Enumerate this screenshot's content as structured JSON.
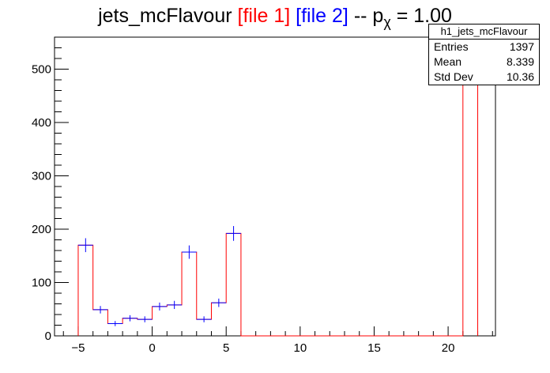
{
  "chart_data": {
    "type": "bar",
    "title_parts": [
      {
        "text": "jets_mcFlavour ",
        "color": "#000000"
      },
      {
        "text": "[file 1]",
        "color": "#ff0000"
      },
      {
        "text": " [file 2]",
        "color": "#0000ff"
      },
      {
        "text": " -- p",
        "color": "#000000"
      }
    ],
    "title_subscript": "χ",
    "title_suffix": " = 1.00",
    "bin_edges": [
      -5,
      -4,
      -3,
      -2,
      -1,
      0,
      1,
      2,
      3,
      4,
      5,
      6,
      7,
      8,
      9,
      10,
      11,
      12,
      13,
      14,
      15,
      16,
      17,
      18,
      19,
      20,
      21,
      22
    ],
    "series": [
      {
        "color": "#ff0000",
        "style": "histogram",
        "values": [
          170,
          49,
          23,
          33,
          31,
          55,
          58,
          157,
          31,
          62,
          192,
          0,
          0,
          0,
          0,
          0,
          0,
          0,
          0,
          0,
          0,
          0,
          0,
          0,
          0,
          0,
          533
        ]
      },
      {
        "color": "#0000ff",
        "style": "errorbar",
        "values": [
          170,
          49,
          23,
          33,
          31,
          55,
          58,
          157,
          31,
          62,
          192,
          0,
          0,
          0,
          0,
          0,
          0,
          0,
          0,
          0,
          0,
          0,
          0,
          0,
          0,
          0,
          533
        ]
      }
    ],
    "xlim": [
      -6.6,
      23.2
    ],
    "ylim": [
      0,
      560
    ],
    "xticks": [
      -5,
      0,
      5,
      10,
      15,
      20
    ],
    "xtick_labels": [
      "−5",
      "0",
      "5",
      "10",
      "15",
      "20"
    ],
    "yticks": [
      0,
      100,
      200,
      300,
      400,
      500
    ],
    "ytick_labels": [
      "0",
      "100",
      "200",
      "300",
      "400",
      "500"
    ],
    "xlabel": "",
    "ylabel": "",
    "grid": false,
    "legend": "none"
  },
  "stats_box": {
    "title": "h1_jets_mcFlavour",
    "rows": [
      {
        "label": "Entries",
        "value": "1397"
      },
      {
        "label": "Mean",
        "value": "8.339"
      },
      {
        "label": "Std Dev",
        "value": "10.36"
      }
    ]
  }
}
